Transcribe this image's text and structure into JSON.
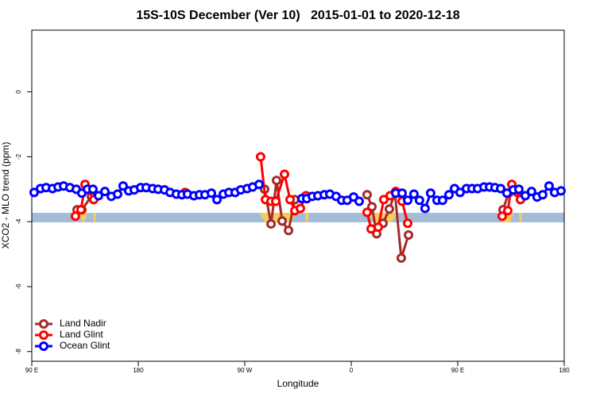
{
  "chart_data": {
    "type": "line",
    "title": "15S-10S December (Ver 10)   2015-01-01 to 2020-12-18",
    "x_label": "Longitude",
    "y_label": "XCO2 - MLO trend (ppm)",
    "xlim": [
      90,
      540
    ],
    "xticks": [
      {
        "value": 90,
        "label": "90 E"
      },
      180,
      {
        "value": 270,
        "label": "90 W"
      },
      {
        "value": 360,
        "label": "0"
      },
      {
        "value": 450,
        "label": "90 E"
      },
      {
        "value": 540,
        "label": "180"
      }
    ],
    "ylim": [
      -8.3,
      1.9
    ],
    "yticks": [
      0,
      -2,
      -4,
      -6,
      -8
    ],
    "legend": "bottom-left",
    "series": [
      {
        "name": "Land Nadir",
        "color": "#a52a2a",
        "x": [
          128.3,
          132.3,
          140.4,
          null,
          286.8,
          292.2,
          296.9,
          301.6,
          307.0,
          312.3,
          null,
          373.4,
          377.5,
          381.5,
          386.9,
          392.2,
          396.9,
          402.3,
          408.4,
          null,
          488.3,
          493.0,
          500.4
        ],
        "values": [
          -3.63,
          -3.63,
          -3.22,
          null,
          -3.0,
          -4.07,
          -2.73,
          -3.98,
          -4.27,
          -3.32,
          null,
          -3.17,
          -3.54,
          -4.37,
          -4.05,
          -3.61,
          -3.12,
          -5.12,
          -4.41,
          null,
          -3.63,
          -3.12,
          -3.1
        ]
      },
      {
        "name": "Land Glint",
        "color": "#ff0000",
        "x": [
          126.9,
          131.6,
          135.0,
          142.4,
          null,
          219.6,
          null,
          283.4,
          287.5,
          292.2,
          296.2,
          303.6,
          308.3,
          312.3,
          317.0,
          321.7,
          null,
          373.4,
          376.8,
          382.8,
          387.5,
          392.9,
          397.6,
          403.0,
          407.7,
          null,
          487.6,
          492.3,
          495.7,
          503.0
        ],
        "values": [
          -3.83,
          -3.63,
          -2.85,
          -3.32,
          null,
          -3.1,
          null,
          -2.0,
          -3.32,
          -3.37,
          -3.37,
          -2.54,
          -3.32,
          -3.66,
          -3.59,
          -3.2,
          null,
          -3.71,
          -4.22,
          -4.17,
          -3.32,
          -3.2,
          -3.07,
          -3.37,
          -4.05,
          null,
          -3.83,
          -3.66,
          -2.85,
          -3.32
        ]
      },
      {
        "name": "Ocean Glint",
        "color": "#0000ff",
        "x": [
          92.0,
          97.4,
          102.1,
          107.5,
          112.2,
          116.9,
          122.2,
          127.6,
          132.3,
          137.0,
          141.7,
          146.4,
          151.8,
          157.2,
          162.5,
          167.2,
          171.9,
          176.6,
          182.0,
          186.7,
          192.1,
          196.8,
          202.2,
          206.9,
          212.2,
          216.9,
          221.6,
          227.0,
          231.7,
          236.4,
          241.8,
          246.5,
          251.9,
          256.6,
          261.9,
          266.6,
          272.0,
          276.7,
          282.1,
          null,
          318.3,
          322.4,
          327.1,
          331.8,
          337.2,
          341.9,
          347.2,
          351.9,
          356.6,
          362.0,
          366.7,
          null,
          397.6,
          403.0,
          407.7,
          413.0,
          417.7,
          422.4,
          427.1,
          432.5,
          437.2,
          442.6,
          447.3,
          452.0,
          457.4,
          462.1,
          466.8,
          472.2,
          476.9,
          481.5,
          486.3,
          491.6,
          497.0,
          501.7,
          507.1,
          512.4,
          517.1,
          521.8,
          527.2,
          531.9,
          537.3
        ],
        "values": [
          -3.1,
          -2.98,
          -2.95,
          -2.98,
          -2.93,
          -2.9,
          -2.95,
          -3.0,
          -3.12,
          -3.0,
          -3.0,
          -3.2,
          -3.07,
          -3.22,
          -3.15,
          -2.9,
          -3.05,
          -3.02,
          -2.95,
          -2.95,
          -2.98,
          -3.0,
          -3.02,
          -3.1,
          -3.15,
          -3.17,
          -3.15,
          -3.2,
          -3.17,
          -3.17,
          -3.12,
          -3.32,
          -3.15,
          -3.1,
          -3.1,
          -3.02,
          -2.98,
          -2.93,
          -2.85,
          null,
          -3.29,
          -3.29,
          -3.22,
          -3.2,
          -3.17,
          -3.15,
          -3.22,
          -3.34,
          -3.34,
          -3.24,
          -3.37,
          null,
          -3.12,
          -3.12,
          -3.34,
          -3.15,
          -3.34,
          -3.59,
          -3.12,
          -3.34,
          -3.34,
          -3.17,
          -2.98,
          -3.1,
          -2.98,
          -2.98,
          -2.98,
          -2.93,
          -2.93,
          -2.95,
          -2.98,
          -3.12,
          -3.02,
          -3.0,
          -3.2,
          -3.07,
          -3.24,
          -3.17,
          -2.9,
          -3.1,
          -3.05
        ]
      }
    ]
  }
}
